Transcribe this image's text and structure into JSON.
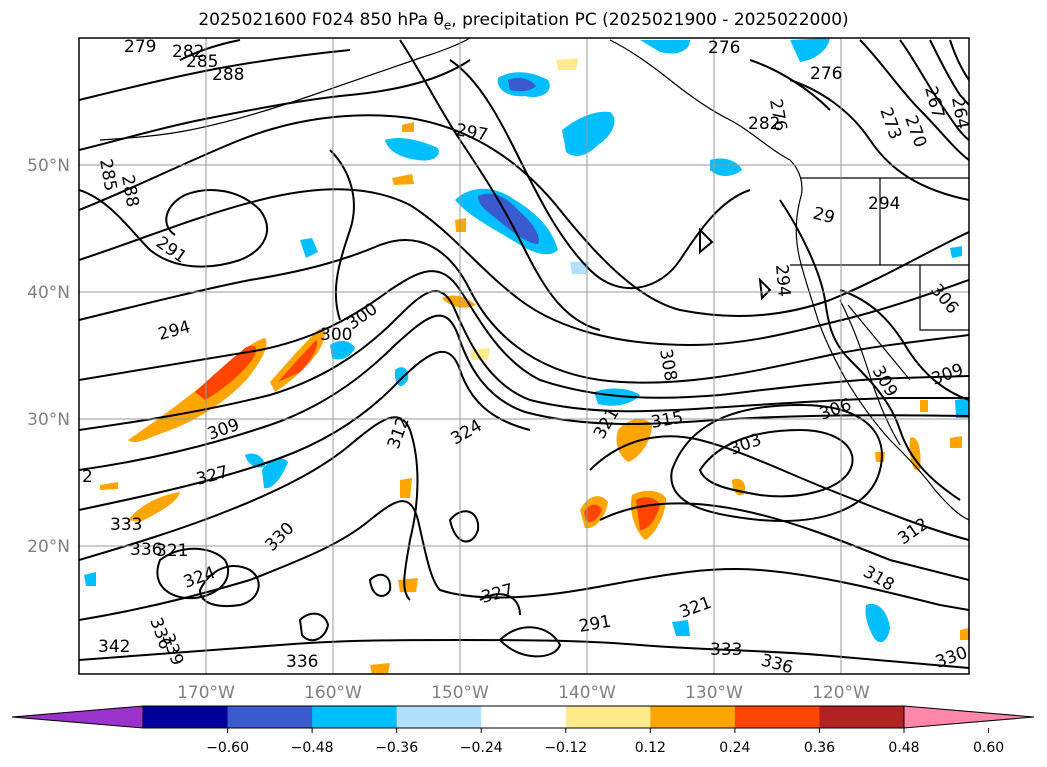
{
  "title_text": "2025021600 F024 850 hPa θ",
  "title_sub": "e",
  "title_rest": ", precipitation PC (2025021900 - 2025022000)",
  "lat_labels": [
    "50°N",
    "40°N",
    "30°N",
    "20°N"
  ],
  "lon_labels": [
    "170°W",
    "160°W",
    "150°W",
    "140°W",
    "130°W",
    "120°W"
  ],
  "contour_labels": [
    "279",
    "282",
    "285",
    "288",
    "276",
    "276",
    "276",
    "297",
    "282",
    "267",
    "273",
    "270",
    "264",
    "285",
    "288",
    "291",
    "294",
    "294",
    "29",
    "300",
    "306",
    "294",
    "300",
    "308",
    "306",
    "309",
    "303",
    "309",
    "309",
    "315",
    "321",
    "324",
    "312",
    "330",
    "333",
    "327",
    "336",
    "321",
    "324",
    "342",
    "336",
    "339",
    "336",
    "327",
    "321",
    "333",
    "336",
    "312",
    "318",
    "330",
    "2",
    "303"
  ],
  "colorbar": {
    "colors": [
      "#9933cc",
      "#000099",
      "#3a5ad0",
      "#00bfff",
      "#b3e0ff",
      "#ffffff",
      "#ffea8c",
      "#ffa500",
      "#ff4500",
      "#b22222",
      "#ff88aa"
    ],
    "ticks": [
      "−0.60",
      "−0.48",
      "−0.36",
      "−0.24",
      "−0.12",
      "0.12",
      "0.24",
      "0.36",
      "0.48",
      "0.60"
    ]
  }
}
